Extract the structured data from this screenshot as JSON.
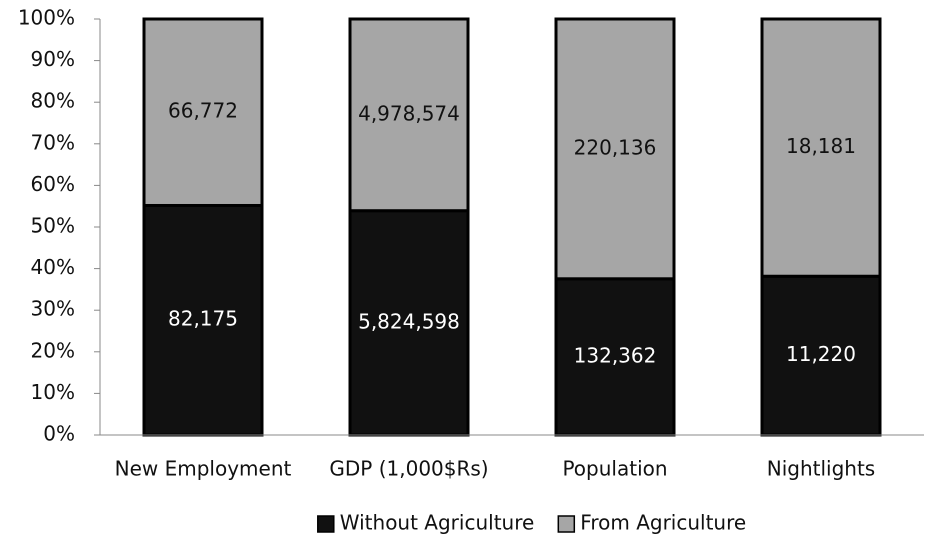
{
  "chart_data": {
    "type": "bar",
    "stacking": "percent",
    "categories": [
      "New Employment",
      "GDP (1,000$Rs)",
      "Population",
      "Nightlights"
    ],
    "series": [
      {
        "name": "Without Agriculture",
        "color": "#111111",
        "label_color": "#ffffff",
        "values": [
          82175,
          5824598,
          132362,
          11220
        ],
        "value_labels": [
          "82,175",
          "5,824,598",
          "132,362",
          "11,220"
        ]
      },
      {
        "name": "From Agriculture",
        "color": "#a6a6a6",
        "label_color": "#111111",
        "values": [
          66772,
          4978574,
          220136,
          18181
        ],
        "value_labels": [
          "66,772",
          "4,978,574",
          "220,136",
          "18,181"
        ]
      }
    ],
    "ylim": [
      0,
      100
    ],
    "yticks": [
      {
        "value": 0,
        "label": "0%"
      },
      {
        "value": 10,
        "label": "10%"
      },
      {
        "value": 20,
        "label": "20%"
      },
      {
        "value": 30,
        "label": "30%"
      },
      {
        "value": 40,
        "label": "40%"
      },
      {
        "value": 50,
        "label": "50%"
      },
      {
        "value": 60,
        "label": "60%"
      },
      {
        "value": 70,
        "label": "70%"
      },
      {
        "value": 80,
        "label": "80%"
      },
      {
        "value": 90,
        "label": "90%"
      },
      {
        "value": 100,
        "label": "100%"
      }
    ],
    "grid": false,
    "legend": "bottom"
  }
}
